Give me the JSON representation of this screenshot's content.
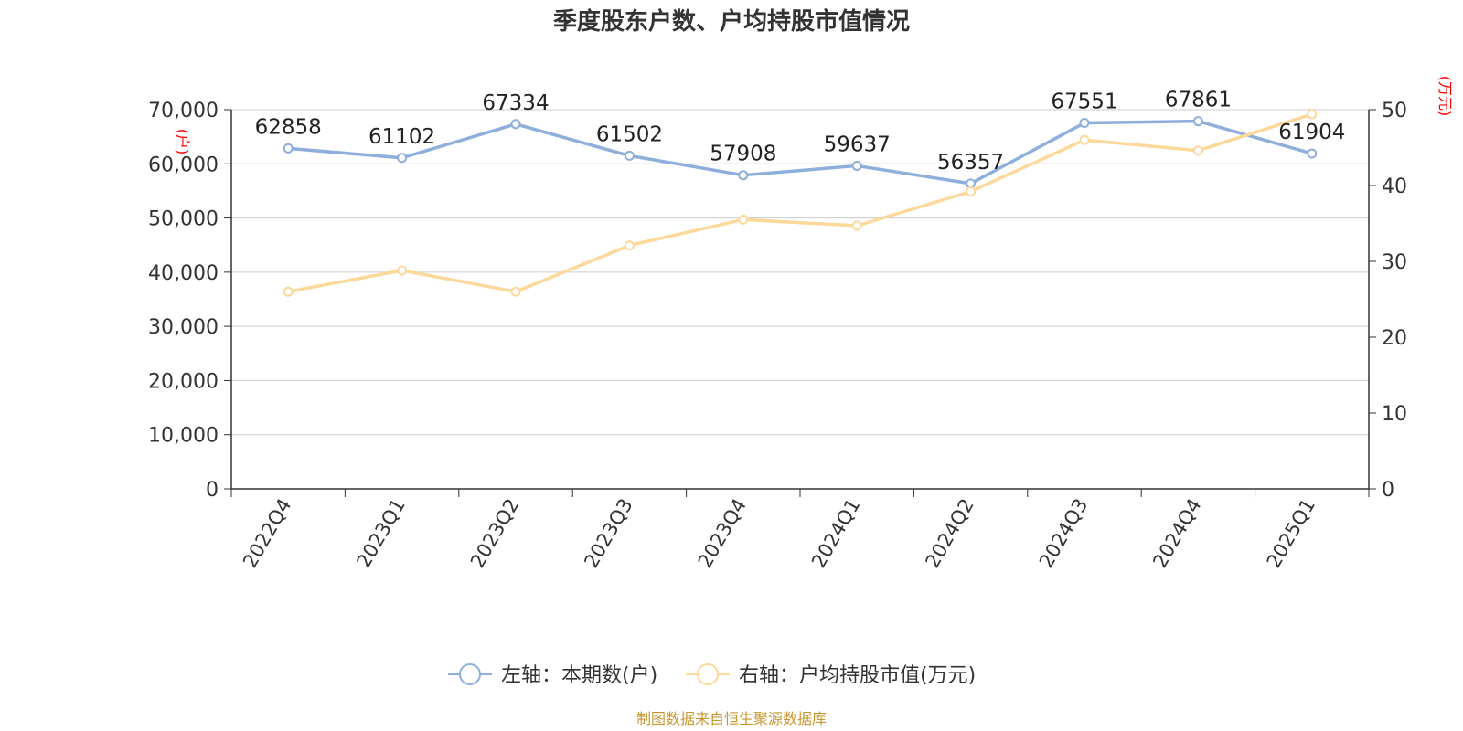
{
  "chart_data": {
    "type": "line",
    "title": "季度股东户数、户均持股市值情况",
    "categories": [
      "2022Q4",
      "2023Q1",
      "2023Q2",
      "2023Q3",
      "2023Q4",
      "2024Q1",
      "2024Q2",
      "2024Q3",
      "2024Q4",
      "2025Q1"
    ],
    "left_axis": {
      "unit": "(户)",
      "ylim": [
        0,
        70000
      ],
      "ticks": [
        "0",
        "10,000",
        "20,000",
        "30,000",
        "40,000",
        "50,000",
        "60,000",
        "70,000"
      ],
      "tick_values": [
        0,
        10000,
        20000,
        30000,
        40000,
        50000,
        60000,
        70000
      ]
    },
    "right_axis": {
      "unit": "(万元)",
      "ylim": [
        0,
        50
      ],
      "ticks": [
        "0",
        "10",
        "20",
        "30",
        "40",
        "50"
      ],
      "tick_values": [
        0,
        10,
        20,
        30,
        40,
        50
      ]
    },
    "series": [
      {
        "name": "左轴：本期数(户)",
        "axis": "left",
        "color": "#8eaedc",
        "values": [
          62858,
          61102,
          67334,
          61502,
          57908,
          59637,
          56357,
          67551,
          67861,
          61904
        ],
        "labels": [
          "62858",
          "61102",
          "67334",
          "61502",
          "57908",
          "59637",
          "56357",
          "67551",
          "67861",
          "61904"
        ]
      },
      {
        "name": "右轴：户均持股市值(万元)",
        "axis": "right",
        "color": "#fcd89a",
        "values": [
          26.0,
          28.8,
          26.0,
          32.1,
          35.5,
          34.7,
          39.2,
          46.0,
          44.6,
          49.4
        ]
      }
    ],
    "grid": true,
    "legend_position": "bottom"
  },
  "source": "制图数据来自恒生聚源数据库"
}
